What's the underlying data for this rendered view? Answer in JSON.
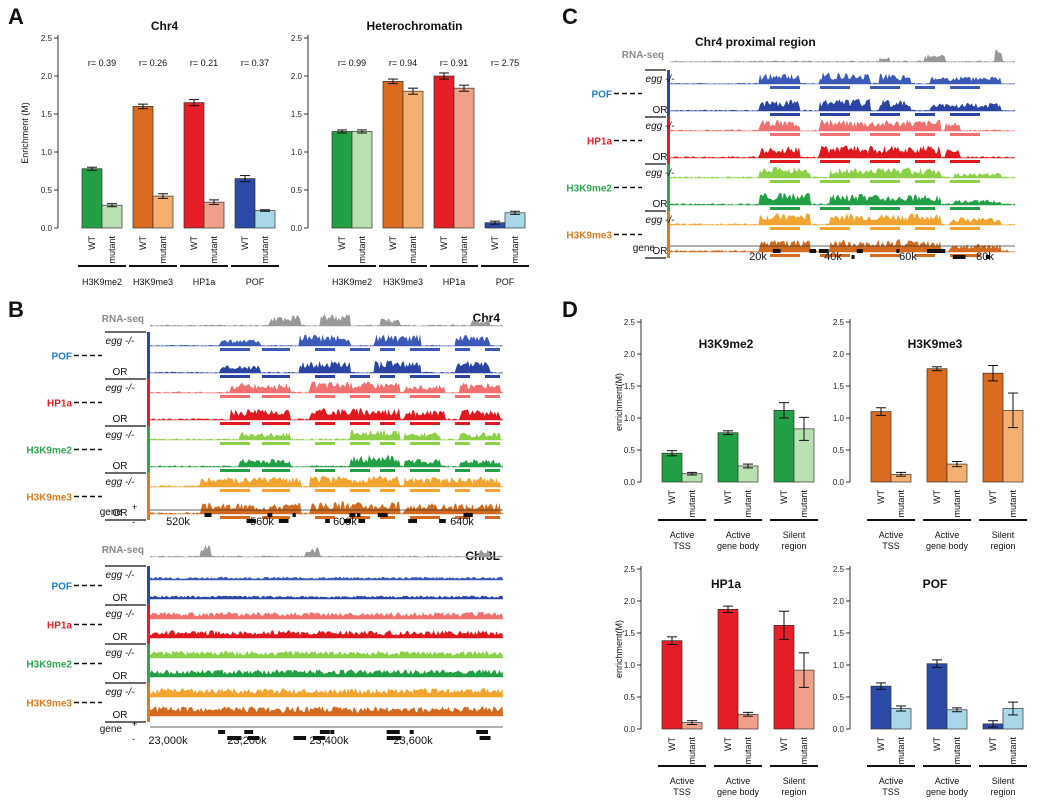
{
  "panels": {
    "a": "A",
    "b": "B",
    "c": "C",
    "d": "D"
  },
  "colors": {
    "h3k9me2": "#22a045",
    "h3k9me2_mut": "#b8e0b0",
    "h3k9me3": "#d96a1e",
    "h3k9me3_mut": "#f4b070",
    "hp1a": "#e51e27",
    "hp1a_mut": "#f0a088",
    "pof": "#2c4aa8",
    "pof_mut": "#a8d8e8",
    "rnaseq": "#888888",
    "hp1a_light": "#f08080",
    "h3k9me2_light": "#8cd048",
    "h3k9me3_light": "#f2a430"
  },
  "chart_data": [
    {
      "type": "bar",
      "id": "A-chr4",
      "title": "Chr4",
      "ylabel": "Enrichment (M)",
      "ylim": [
        0,
        2.5
      ],
      "yticks": [
        "0.0",
        "0.5",
        "1.0",
        "1.5",
        "2.0",
        "2.5"
      ],
      "categories": [
        "H3K9me2",
        "H3K9me3",
        "HP1a",
        "POF"
      ],
      "bar_labels": [
        "WT",
        "mutant"
      ],
      "r_values": [
        "r= 0.39",
        "r= 0.26",
        "r= 0.21",
        "r= 0.37"
      ],
      "series": [
        {
          "name": "WT",
          "values": [
            0.78,
            1.6,
            1.65,
            0.65
          ],
          "errors": [
            0.02,
            0.03,
            0.04,
            0.04
          ]
        },
        {
          "name": "mutant",
          "values": [
            0.3,
            0.42,
            0.34,
            0.23
          ],
          "errors": [
            0.02,
            0.03,
            0.03,
            0.01
          ]
        }
      ]
    },
    {
      "type": "bar",
      "id": "A-het",
      "title": "Heterochromatin",
      "ylabel": "",
      "ylim": [
        0,
        2.5
      ],
      "yticks": [
        "0.0",
        "0.5",
        "1.0",
        "1.5",
        "2.0",
        "2.5"
      ],
      "categories": [
        "H3K9me2",
        "H3K9me3",
        "HP1a",
        "POF"
      ],
      "bar_labels": [
        "WT",
        "mutant"
      ],
      "r_values": [
        "r= 0.99",
        "r= 0.94",
        "r= 0.91",
        "r= 2.75"
      ],
      "series": [
        {
          "name": "WT",
          "values": [
            1.27,
            1.93,
            2.0,
            0.07
          ],
          "errors": [
            0.02,
            0.03,
            0.04,
            0.02
          ]
        },
        {
          "name": "mutant",
          "values": [
            1.27,
            1.8,
            1.84,
            0.2
          ],
          "errors": [
            0.02,
            0.04,
            0.04,
            0.02
          ]
        }
      ]
    },
    {
      "type": "bar",
      "id": "D-h3k9me2",
      "title": "H3K9me2",
      "ylabel": "enrichment(M)",
      "ylim": [
        0,
        2.5
      ],
      "yticks": [
        "0.0",
        "0.5",
        "1.0",
        "1.5",
        "2.0",
        "2.5"
      ],
      "categories": [
        "Active TSS",
        "Active gene body",
        "Silent region"
      ],
      "bar_labels": [
        "WT",
        "mutant"
      ],
      "series": [
        {
          "name": "WT",
          "values": [
            0.45,
            0.77,
            1.12
          ],
          "errors": [
            0.04,
            0.03,
            0.12
          ]
        },
        {
          "name": "mutant",
          "values": [
            0.13,
            0.25,
            0.83
          ],
          "errors": [
            0.02,
            0.03,
            0.18
          ]
        }
      ]
    },
    {
      "type": "bar",
      "id": "D-h3k9me3",
      "title": "H3K9me3",
      "ylabel": "",
      "ylim": [
        0,
        2.5
      ],
      "yticks": [
        "0.0",
        "0.5",
        "1.0",
        "1.5",
        "2.0",
        "2.5"
      ],
      "categories": [
        "Active TSS",
        "Active gene body",
        "Silent region"
      ],
      "bar_labels": [
        "WT",
        "mutant"
      ],
      "series": [
        {
          "name": "WT",
          "values": [
            1.1,
            1.77,
            1.7
          ],
          "errors": [
            0.06,
            0.03,
            0.12
          ]
        },
        {
          "name": "mutant",
          "values": [
            0.12,
            0.28,
            1.12
          ],
          "errors": [
            0.03,
            0.04,
            0.27
          ]
        }
      ]
    },
    {
      "type": "bar",
      "id": "D-hp1a",
      "title": "HP1a",
      "ylabel": "enrichment(M)",
      "ylim": [
        0,
        2.5
      ],
      "yticks": [
        "0.0",
        "0.5",
        "1.0",
        "1.5",
        "2.0",
        "2.5"
      ],
      "categories": [
        "Active TSS",
        "Active gene body",
        "Silent region"
      ],
      "bar_labels": [
        "WT",
        "mutant"
      ],
      "series": [
        {
          "name": "WT",
          "values": [
            1.38,
            1.87,
            1.62
          ],
          "errors": [
            0.06,
            0.05,
            0.22
          ]
        },
        {
          "name": "mutant",
          "values": [
            0.1,
            0.23,
            0.92
          ],
          "errors": [
            0.03,
            0.03,
            0.27
          ]
        }
      ]
    },
    {
      "type": "bar",
      "id": "D-pof",
      "title": "POF",
      "ylabel": "",
      "ylim": [
        0,
        2.5
      ],
      "yticks": [
        "0.0",
        "0.5",
        "1.0",
        "1.5",
        "2.0",
        "2.5"
      ],
      "categories": [
        "Active TSS",
        "Active gene body",
        "Silent region"
      ],
      "bar_labels": [
        "WT",
        "mutant"
      ],
      "series": [
        {
          "name": "WT",
          "values": [
            0.67,
            1.02,
            0.08
          ],
          "errors": [
            0.05,
            0.06,
            0.05
          ]
        },
        {
          "name": "mutant",
          "values": [
            0.32,
            0.3,
            0.32
          ],
          "errors": [
            0.04,
            0.03,
            0.1
          ]
        }
      ]
    }
  ],
  "browser_b1": {
    "region": "Chr4",
    "coords": [
      "520k",
      "560k",
      "600k",
      "640k"
    ],
    "gene_label": "gene",
    "plus": "+",
    "minus": "-",
    "tracks": [
      {
        "label": "RNA-seq",
        "color": "#888888"
      },
      {
        "group": "POF",
        "color": "#1f6fb0"
      },
      {
        "group": "HP1a",
        "color": "#e51e27"
      },
      {
        "group": "H3K9me2",
        "color": "#2fa84f"
      },
      {
        "group": "H3K9me3",
        "color": "#e07b20"
      }
    ],
    "rows": [
      "egg -/-",
      "OR"
    ]
  },
  "browser_b2": {
    "region": "Chr3L",
    "coords": [
      "23,000k",
      "23,200k",
      "23,400k",
      "23,600k"
    ],
    "gene_label": "gene",
    "plus": "+",
    "minus": "-"
  },
  "browser_c": {
    "region": "Chr4 proximal region",
    "coords": [
      "20k",
      "40k",
      "60k",
      "80k"
    ],
    "gene_label": "gene"
  }
}
